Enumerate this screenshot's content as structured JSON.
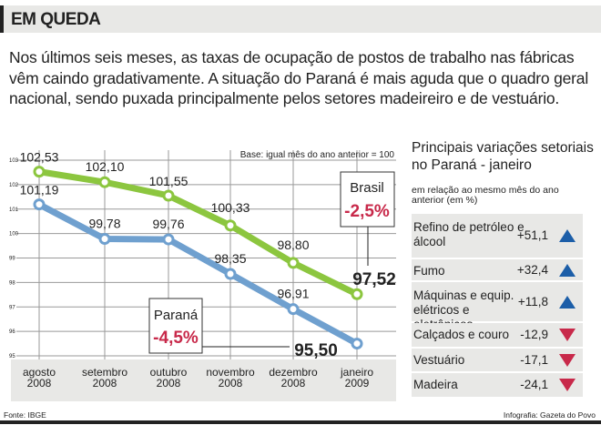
{
  "header": {
    "title": "EM QUEDA"
  },
  "intro": "Nos últimos seis meses, as taxas de ocupação de postos de trabalho nas fábricas vêm caindo gradativamente. A situação do Paraná é mais aguda que o quadro geral nacional, sendo puxada principalmente pelos setores madeireiro e de vestuário.",
  "chart_data": {
    "type": "line",
    "note": "Base: igual mês do ano anterior = 100",
    "categories": [
      [
        "agosto",
        "2008"
      ],
      [
        "setembro",
        "2008"
      ],
      [
        "outubro",
        "2008"
      ],
      [
        "novembro",
        "2008"
      ],
      [
        "dezembro",
        "2008"
      ],
      [
        "janeiro",
        "2009"
      ]
    ],
    "ylim": [
      95,
      103
    ],
    "yticks": [
      "95",
      "96",
      "97",
      "98",
      "99",
      "100",
      "101",
      "102",
      "103"
    ],
    "grid": true,
    "series": [
      {
        "name": "Brasil",
        "change": "-2,5%",
        "color": "#8cc63f",
        "values": [
          102.53,
          102.1,
          101.55,
          100.33,
          98.8,
          97.52
        ],
        "labels": [
          "102,53",
          "102,10",
          "101,55",
          "100,33",
          "98,80",
          "97,52"
        ]
      },
      {
        "name": "Paraná",
        "change": "-4,5%",
        "color": "#6fa0cf",
        "values": [
          101.19,
          99.78,
          99.76,
          98.35,
          96.91,
          95.5
        ],
        "labels": [
          "101,19",
          "99,78",
          "99,76",
          "98,35",
          "96,91",
          "95,50"
        ]
      }
    ],
    "change_color": "#c8294a"
  },
  "side": {
    "title": "Principais variações setoriais no Paraná - janeiro",
    "subtitle": "em relação ao mesmo mês do ano anterior (em %)",
    "rows": [
      {
        "label": "Refino de petróleo e álcool",
        "value": "+51,1",
        "dir": "up"
      },
      {
        "label": "Fumo",
        "value": "+32,4",
        "dir": "up"
      },
      {
        "label": "Máquinas e equip. elétricos e eletrônicos",
        "value": "+11,8",
        "dir": "up"
      },
      {
        "label": "Calçados e couro",
        "value": "-12,9",
        "dir": "down"
      },
      {
        "label": "Vestuário",
        "value": "-17,1",
        "dir": "down"
      },
      {
        "label": "Madeira",
        "value": "-24,1",
        "dir": "down"
      }
    ]
  },
  "footer": {
    "source": "Fonte: IBGE",
    "credit": "Infografia: Gazeta do Povo"
  }
}
